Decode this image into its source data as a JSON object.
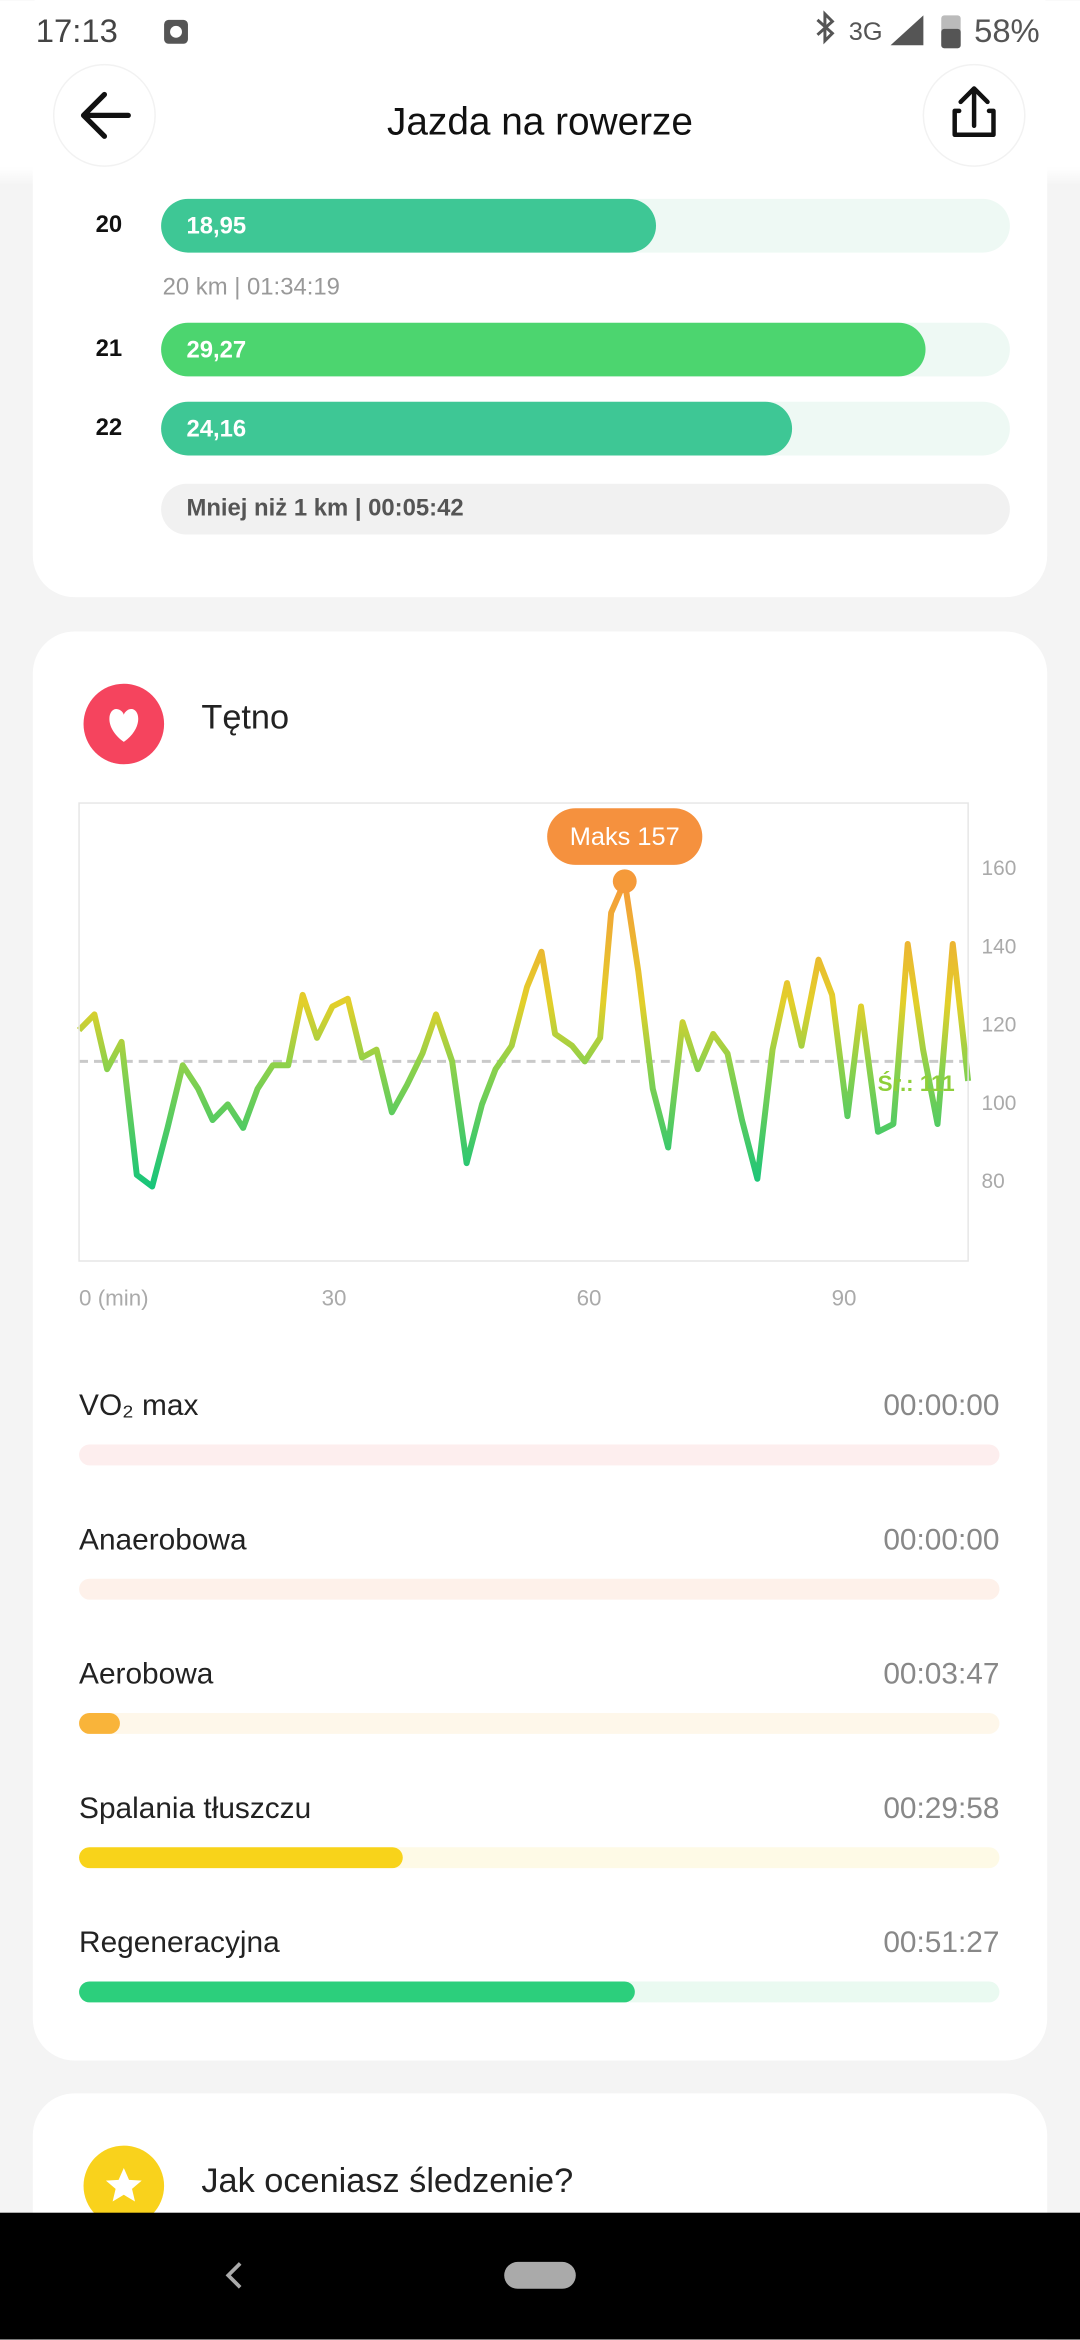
{
  "status_bar": {
    "time": "17:13",
    "network": "3G",
    "battery": "58%"
  },
  "header": {
    "title": "Jazda na rowerze"
  },
  "splits": {
    "xlim": [
      0,
      32.5
    ],
    "rows": [
      {
        "label": "20",
        "value": 18.95,
        "value_label": "18,95",
        "color": "#3ec795",
        "note": "20 km | 01:34:19"
      },
      {
        "label": "21",
        "value": 29.27,
        "value_label": "29,27",
        "color": "#4cd56f"
      },
      {
        "label": "22",
        "value": 24.16,
        "value_label": "24,16",
        "color": "#3ec795",
        "note": "Mniej niż 1 km | 00:05:42"
      }
    ]
  },
  "heart_rate": {
    "title": "Tętno"
  },
  "chart_data": {
    "type": "line",
    "x": [
      0,
      1.8,
      3.3,
      5,
      6.8,
      8.6,
      10.4,
      12.2,
      14,
      15.7,
      17.5,
      19.3,
      21,
      22.8,
      24.6,
      26.3,
      28,
      29.8,
      31.6,
      33.3,
      35,
      36.8,
      38.6,
      40.4,
      42,
      43.9,
      45.6,
      47.4,
      49,
      50.9,
      52.7,
      54.4,
      56,
      58,
      59.5,
      61.3,
      62.6,
      64.2,
      65.8,
      67.5,
      69.3,
      71,
      72.8,
      74.6,
      76.3,
      78,
      79.8,
      81.6,
      83.3,
      85,
      87,
      88.6,
      90.4,
      92,
      94,
      95.8,
      97.5,
      99.3,
      101,
      102.8,
      104.6
    ],
    "series": [
      {
        "values": [
          119,
          123,
          109,
          116,
          82,
          79,
          94,
          110,
          104,
          96,
          100,
          94,
          104,
          110,
          110,
          128,
          117,
          125,
          127,
          112,
          114,
          98,
          105,
          113,
          123,
          111,
          85,
          100,
          109,
          115,
          130,
          139,
          118,
          115,
          111,
          117,
          149,
          157,
          134,
          104,
          89,
          121,
          109,
          118,
          113,
          96,
          81,
          114,
          131,
          115,
          137,
          128,
          97,
          125,
          93,
          95,
          141,
          114,
          95,
          141,
          106
        ]
      }
    ],
    "xlim": [
      0,
      104.6
    ],
    "ylim": [
      60,
      177
    ],
    "xticks": [
      {
        "value": 0,
        "label": "0 (min)"
      },
      30,
      60,
      90
    ],
    "yticks": [
      80,
      100,
      120,
      140,
      160
    ],
    "average": {
      "value": 111,
      "label": "Śr.: 111"
    },
    "annotations": [
      {
        "x": 64.2,
        "y": 157,
        "label": "Maks 157"
      }
    ]
  },
  "zones": [
    {
      "name": "VO₂ max",
      "time": "00:00:00",
      "color": "#f26b6b",
      "track": "#fdeeee"
    },
    {
      "name": "Anaerobowa",
      "time": "00:00:00",
      "color": "#f7894a",
      "track": "#fef1ea"
    },
    {
      "name": "Aerobowa",
      "time": "00:03:47",
      "color": "#f9b43a",
      "track": "#fef7ea"
    },
    {
      "name": "Spalania tłuszczu",
      "time": "00:29:58",
      "color": "#f8d31a",
      "track": "#fefae6"
    },
    {
      "name": "Regeneracyjna",
      "time": "00:51:27",
      "color": "#2ccf7c",
      "track": "#eafaf1"
    }
  ],
  "rating": {
    "title": "Jak oceniasz śledzenie?"
  }
}
